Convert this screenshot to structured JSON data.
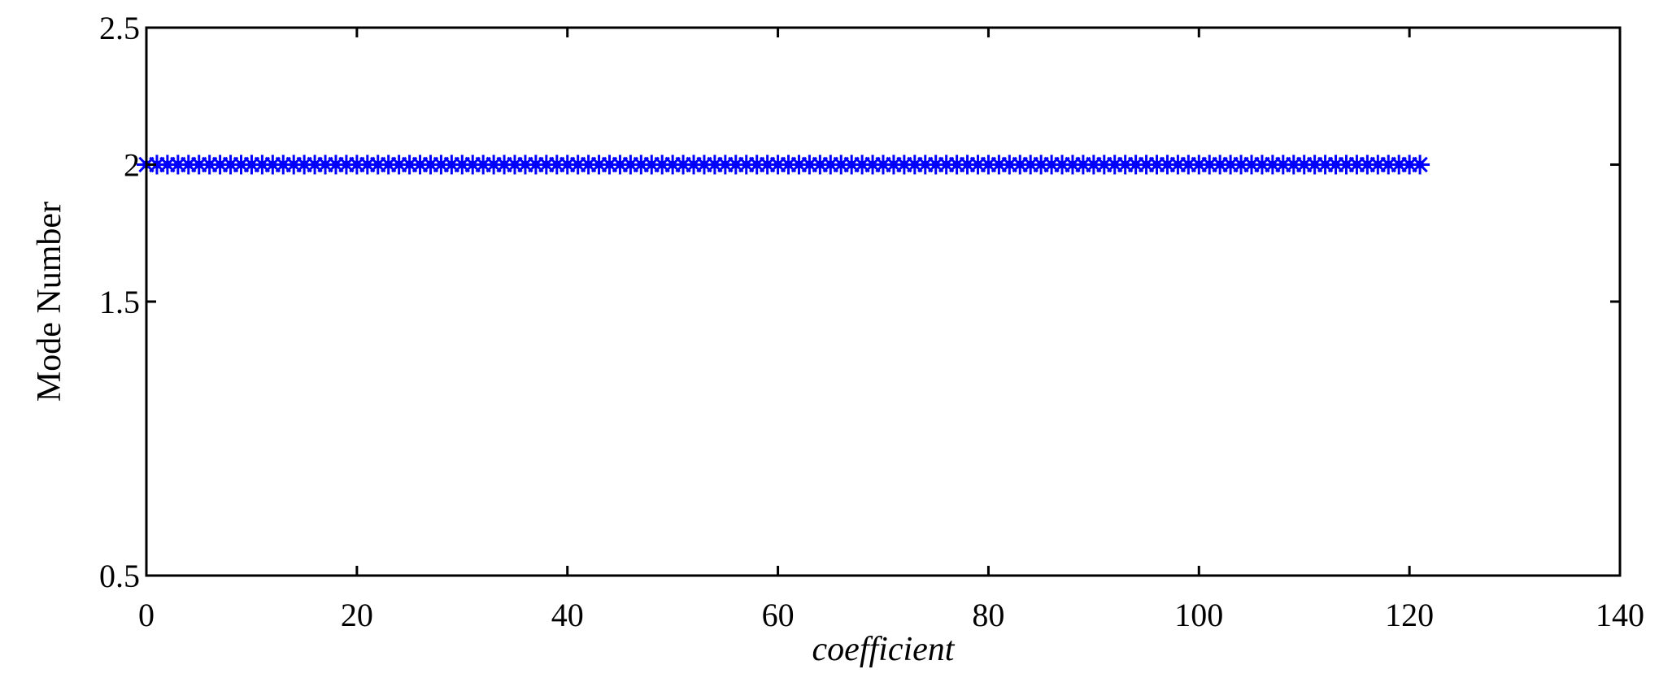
{
  "chart_data": {
    "type": "line",
    "title": "",
    "xlabel": "coefficient",
    "ylabel": "Mode Number",
    "xlim": [
      0,
      140
    ],
    "ylim": [
      0.5,
      2.5
    ],
    "x_ticks": [
      0,
      20,
      40,
      60,
      80,
      100,
      120,
      140
    ],
    "x_tick_labels": [
      "0",
      "20",
      "40",
      "60",
      "80",
      "100",
      "120",
      "140"
    ],
    "y_ticks": [
      0.5,
      1.5,
      2,
      2.5
    ],
    "y_tick_labels": [
      "0.5",
      "1.5",
      "2",
      "2.5"
    ],
    "grid": false,
    "legend": "none",
    "series": [
      {
        "color": "#0000ff",
        "markers": [
          "asterisk",
          "circle"
        ],
        "x_start": 0,
        "x_end": 121,
        "x_step": 1,
        "y": 2
      }
    ]
  }
}
